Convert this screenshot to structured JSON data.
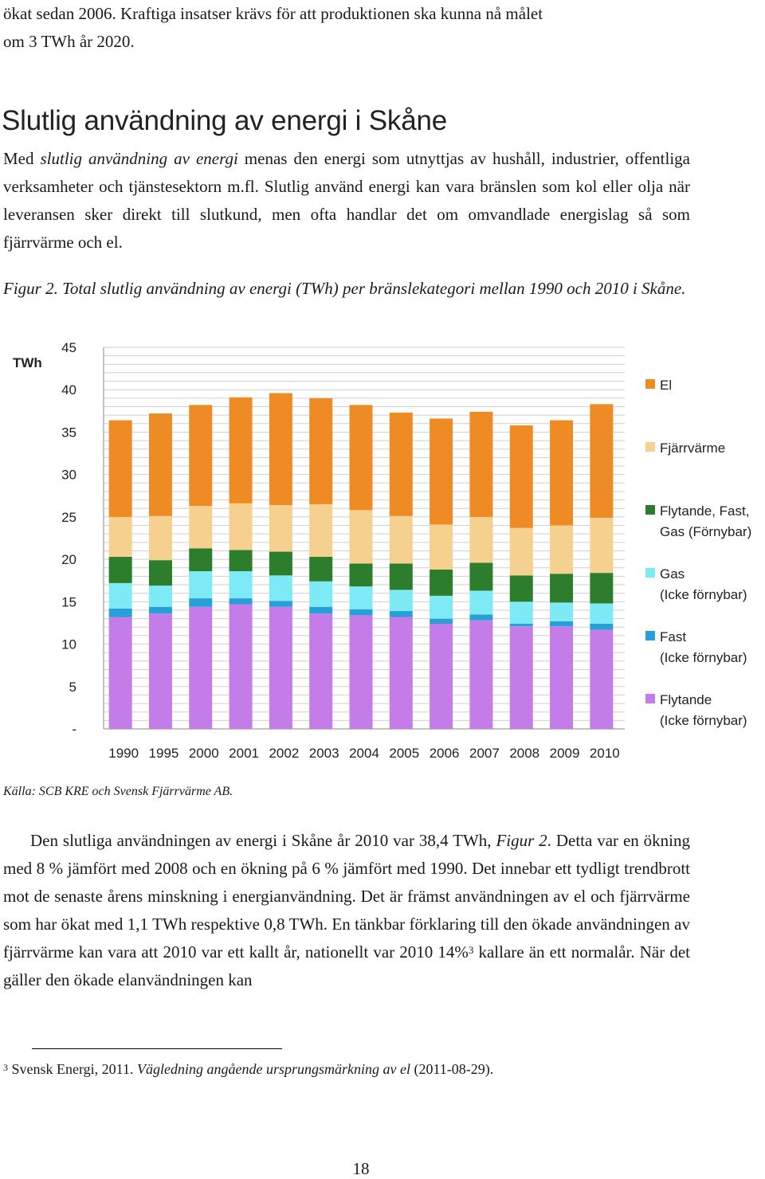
{
  "intro_lines": [
    "ökat sedan 2006. Kraftiga insatser krävs för att produktionen ska kunna nå målet",
    "om 3 TWh år 2020."
  ],
  "heading": "Slutlig användning av energi i Skåne",
  "definition": {
    "pre": "Med ",
    "italic": "slutlig användning av energi",
    "post": " menas den energi som utnyttjas av hushåll, industrier, offentliga verksamheter och tjänstesektorn m.fl. Slutlig använd energi kan vara bränslen som kol eller olja när leveransen sker direkt till slutkund, men ofta handlar det om omvandlade energislag så som fjärrvärme och el."
  },
  "figure_caption": "Figur 2. Total slutlig användning av energi (TWh) per bränslekategori mellan 1990 och 2010 i Skåne.",
  "chart_data": {
    "type": "bar",
    "stacked": true,
    "ylabel": "TWh",
    "ylim": [
      0,
      45
    ],
    "yticks": [
      0,
      5,
      10,
      15,
      20,
      25,
      30,
      35,
      40,
      45
    ],
    "ytick_labels": [
      "-",
      "5",
      "10",
      "15",
      "20",
      "25",
      "30",
      "35",
      "40",
      "45"
    ],
    "grid": true,
    "legend_position": "right",
    "categories": [
      "1990",
      "1995",
      "2000",
      "2001",
      "2002",
      "2003",
      "2004",
      "2005",
      "2006",
      "2007",
      "2008",
      "2009",
      "2010"
    ],
    "series": [
      {
        "name": "Flytande (Icke förnybar)",
        "color": "#c47ce8",
        "values": [
          13.2,
          13.6,
          14.4,
          14.7,
          14.4,
          13.6,
          13.4,
          13.2,
          12.4,
          12.8,
          12.1,
          12.1,
          11.7
        ]
      },
      {
        "name": "Fast (Icke förnybar)",
        "color": "#27a0d8",
        "values": [
          1.0,
          0.8,
          1.0,
          0.7,
          0.7,
          0.8,
          0.7,
          0.7,
          0.6,
          0.7,
          0.3,
          0.6,
          0.7
        ]
      },
      {
        "name": "Gas (Icke förnybar)",
        "color": "#7eeaf6",
        "values": [
          3.0,
          2.5,
          3.2,
          3.2,
          3.0,
          3.0,
          2.7,
          2.5,
          2.7,
          2.8,
          2.6,
          2.2,
          2.4
        ]
      },
      {
        "name": "Flytande, Fast, Gas (Förnybar)",
        "color": "#2c7e2c",
        "values": [
          3.1,
          3.0,
          2.7,
          2.5,
          2.8,
          2.9,
          2.7,
          3.1,
          3.1,
          3.3,
          3.1,
          3.4,
          3.6
        ]
      },
      {
        "name": "Fjärrvärme",
        "color": "#f6d08e",
        "values": [
          4.7,
          5.2,
          5.0,
          5.5,
          5.5,
          6.2,
          6.3,
          5.6,
          5.3,
          5.4,
          5.6,
          5.7,
          6.5
        ]
      },
      {
        "name": "El",
        "color": "#ee8b25",
        "values": [
          11.4,
          12.1,
          11.9,
          12.5,
          13.2,
          12.5,
          12.4,
          12.2,
          12.5,
          12.4,
          12.1,
          12.4,
          13.4
        ]
      }
    ]
  },
  "source_note": "Källa: SCB KRE och Svensk Fjärrvärme AB.",
  "body": {
    "p1_pre": "Den slutliga användningen av energi i Skåne år 2010 var 38,4 TWh, ",
    "p1_fig": "Figur 2",
    "p1_post": ". Detta var en ökning med 8 % jämfört med 2008 och en ökning på 6 % jämfört med 1990. Det innebar ett tydligt trendbrott mot de senaste årens minskning i energianvändning. Det är främst användningen av el och fjärrvärme som har ökat med 1,1 TWh respektive 0,8 TWh. En tänkbar förklaring till den ökade användningen av fjärrvärme kan vara att 2010 var ett kallt år, nationellt var 2010 14%",
    "p1_ref": "3",
    "p1_end": " kallare än ett normalår. När det gäller den ökade elanvändningen kan"
  },
  "footnote": {
    "num": "3",
    "pre": " Svensk Energi, 2011. ",
    "italic": "Vägledning angående ursprungsmärkning av el",
    "post": " (2011-08-29)."
  },
  "page_number": "18"
}
